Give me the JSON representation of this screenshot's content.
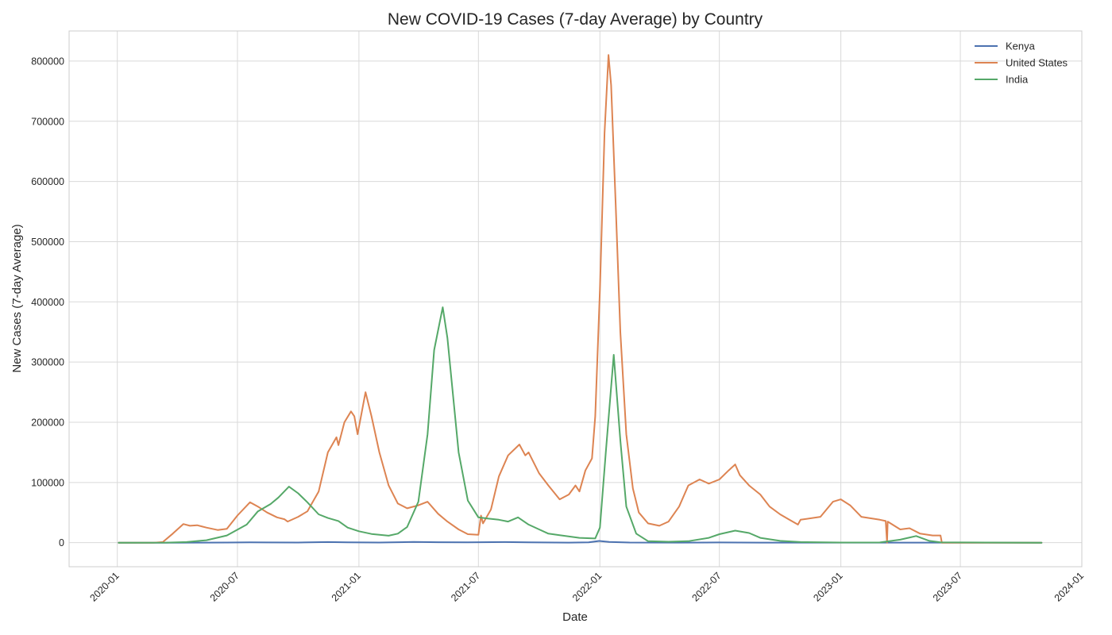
{
  "chart_data": {
    "type": "line",
    "title": "New COVID-19 Cases (7-day Average) by Country",
    "xlabel": "Date",
    "ylabel": "New Cases (7-day Average)",
    "xlim": [
      "2019-10-20",
      "2024-01-01"
    ],
    "ylim": [
      -40000,
      850000
    ],
    "x_ticks": [
      "2020-01",
      "2020-07",
      "2021-01",
      "2021-07",
      "2022-01",
      "2022-07",
      "2023-01",
      "2023-07",
      "2024-01"
    ],
    "y_ticks": [
      0,
      100000,
      200000,
      300000,
      400000,
      500000,
      600000,
      700000,
      800000
    ],
    "grid": true,
    "legend_position": "top-right",
    "series": [
      {
        "name": "Kenya",
        "color": "#4c72b0",
        "points": [
          [
            "2020-01-03",
            0
          ],
          [
            "2020-03-15",
            0
          ],
          [
            "2020-05-01",
            50
          ],
          [
            "2020-06-15",
            200
          ],
          [
            "2020-07-20",
            500
          ],
          [
            "2020-08-15",
            300
          ],
          [
            "2020-10-01",
            200
          ],
          [
            "2020-11-15",
            1000
          ],
          [
            "2020-12-15",
            500
          ],
          [
            "2021-02-01",
            150
          ],
          [
            "2021-03-25",
            1200
          ],
          [
            "2021-05-01",
            700
          ],
          [
            "2021-06-15",
            500
          ],
          [
            "2021-08-10",
            1000
          ],
          [
            "2021-09-15",
            500
          ],
          [
            "2021-11-15",
            50
          ],
          [
            "2021-12-15",
            500
          ],
          [
            "2021-12-31",
            2800
          ],
          [
            "2022-01-15",
            1200
          ],
          [
            "2022-02-15",
            200
          ],
          [
            "2022-05-01",
            100
          ],
          [
            "2022-06-30",
            300
          ],
          [
            "2022-09-01",
            100
          ],
          [
            "2023-01-01",
            30
          ],
          [
            "2023-11-01",
            0
          ]
        ]
      },
      {
        "name": "United States",
        "color": "#dd8452",
        "points": [
          [
            "2020-01-03",
            0
          ],
          [
            "2020-02-25",
            0
          ],
          [
            "2020-03-10",
            1000
          ],
          [
            "2020-03-25",
            15000
          ],
          [
            "2020-04-10",
            31000
          ],
          [
            "2020-04-20",
            28000
          ],
          [
            "2020-05-01",
            29000
          ],
          [
            "2020-05-15",
            25000
          ],
          [
            "2020-06-01",
            21000
          ],
          [
            "2020-06-15",
            23000
          ],
          [
            "2020-07-01",
            45000
          ],
          [
            "2020-07-20",
            67000
          ],
          [
            "2020-08-01",
            60000
          ],
          [
            "2020-08-15",
            50000
          ],
          [
            "2020-08-30",
            42000
          ],
          [
            "2020-09-10",
            39000
          ],
          [
            "2020-09-15",
            35000
          ],
          [
            "2020-10-01",
            43000
          ],
          [
            "2020-10-15",
            52000
          ],
          [
            "2020-11-01",
            85000
          ],
          [
            "2020-11-15",
            150000
          ],
          [
            "2020-11-28",
            175000
          ],
          [
            "2020-12-01",
            162000
          ],
          [
            "2020-12-10",
            200000
          ],
          [
            "2020-12-20",
            218000
          ],
          [
            "2020-12-25",
            210000
          ],
          [
            "2020-12-30",
            180000
          ],
          [
            "2021-01-11",
            250000
          ],
          [
            "2021-01-20",
            210000
          ],
          [
            "2021-02-01",
            150000
          ],
          [
            "2021-02-15",
            95000
          ],
          [
            "2021-03-01",
            65000
          ],
          [
            "2021-03-15",
            57000
          ],
          [
            "2021-04-01",
            62000
          ],
          [
            "2021-04-15",
            68000
          ],
          [
            "2021-05-01",
            48000
          ],
          [
            "2021-05-15",
            35000
          ],
          [
            "2021-06-01",
            22000
          ],
          [
            "2021-06-15",
            14000
          ],
          [
            "2021-07-01",
            13000
          ],
          [
            "2021-07-05",
            45000
          ],
          [
            "2021-07-08",
            32000
          ],
          [
            "2021-07-20",
            55000
          ],
          [
            "2021-08-01",
            110000
          ],
          [
            "2021-08-15",
            145000
          ],
          [
            "2021-09-01",
            163000
          ],
          [
            "2021-09-10",
            145000
          ],
          [
            "2021-09-15",
            150000
          ],
          [
            "2021-10-01",
            115000
          ],
          [
            "2021-10-15",
            95000
          ],
          [
            "2021-11-01",
            72000
          ],
          [
            "2021-11-15",
            80000
          ],
          [
            "2021-11-25",
            95000
          ],
          [
            "2021-12-01",
            85000
          ],
          [
            "2021-12-10",
            120000
          ],
          [
            "2021-12-20",
            140000
          ],
          [
            "2021-12-25",
            210000
          ],
          [
            "2022-01-01",
            420000
          ],
          [
            "2022-01-08",
            680000
          ],
          [
            "2022-01-14",
            810000
          ],
          [
            "2022-01-18",
            760000
          ],
          [
            "2022-01-25",
            560000
          ],
          [
            "2022-02-01",
            350000
          ],
          [
            "2022-02-10",
            180000
          ],
          [
            "2022-02-20",
            90000
          ],
          [
            "2022-03-01",
            50000
          ],
          [
            "2022-03-15",
            32000
          ],
          [
            "2022-04-01",
            28000
          ],
          [
            "2022-04-15",
            35000
          ],
          [
            "2022-05-01",
            60000
          ],
          [
            "2022-05-15",
            95000
          ],
          [
            "2022-06-01",
            105000
          ],
          [
            "2022-06-15",
            98000
          ],
          [
            "2022-07-01",
            105000
          ],
          [
            "2022-07-15",
            120000
          ],
          [
            "2022-07-25",
            130000
          ],
          [
            "2022-08-01",
            112000
          ],
          [
            "2022-08-15",
            95000
          ],
          [
            "2022-09-01",
            80000
          ],
          [
            "2022-09-15",
            60000
          ],
          [
            "2022-10-01",
            47000
          ],
          [
            "2022-10-15",
            38000
          ],
          [
            "2022-10-28",
            30000
          ],
          [
            "2022-11-01",
            38000
          ],
          [
            "2022-12-01",
            43000
          ],
          [
            "2022-12-20",
            68000
          ],
          [
            "2023-01-01",
            72000
          ],
          [
            "2023-01-15",
            62000
          ],
          [
            "2023-02-01",
            43000
          ],
          [
            "2023-03-01",
            38000
          ],
          [
            "2023-03-10",
            36000
          ],
          [
            "2023-03-12",
            0
          ],
          [
            "2023-03-13",
            35000
          ],
          [
            "2023-04-01",
            22000
          ],
          [
            "2023-04-15",
            24000
          ],
          [
            "2023-05-01",
            15000
          ],
          [
            "2023-05-20",
            12000
          ],
          [
            "2023-06-01",
            12000
          ],
          [
            "2023-06-03",
            0
          ],
          [
            "2023-11-01",
            0
          ]
        ]
      },
      {
        "name": "India",
        "color": "#55a868",
        "points": [
          [
            "2020-01-03",
            0
          ],
          [
            "2020-03-15",
            50
          ],
          [
            "2020-04-15",
            1000
          ],
          [
            "2020-05-15",
            4000
          ],
          [
            "2020-06-15",
            12000
          ],
          [
            "2020-07-15",
            30000
          ],
          [
            "2020-08-01",
            52000
          ],
          [
            "2020-08-20",
            64000
          ],
          [
            "2020-09-01",
            75000
          ],
          [
            "2020-09-17",
            93000
          ],
          [
            "2020-10-01",
            82000
          ],
          [
            "2020-10-15",
            67000
          ],
          [
            "2020-11-01",
            47000
          ],
          [
            "2020-11-15",
            41000
          ],
          [
            "2020-12-01",
            36000
          ],
          [
            "2020-12-15",
            25000
          ],
          [
            "2021-01-01",
            19000
          ],
          [
            "2021-01-20",
            14500
          ],
          [
            "2021-02-15",
            11500
          ],
          [
            "2021-03-01",
            15000
          ],
          [
            "2021-03-15",
            26000
          ],
          [
            "2021-04-01",
            68000
          ],
          [
            "2021-04-15",
            180000
          ],
          [
            "2021-04-25",
            320000
          ],
          [
            "2021-05-08",
            391000
          ],
          [
            "2021-05-15",
            340000
          ],
          [
            "2021-06-01",
            150000
          ],
          [
            "2021-06-15",
            70000
          ],
          [
            "2021-07-01",
            42000
          ],
          [
            "2021-07-15",
            40000
          ],
          [
            "2021-08-01",
            38000
          ],
          [
            "2021-08-15",
            35000
          ],
          [
            "2021-08-30",
            42000
          ],
          [
            "2021-09-15",
            30000
          ],
          [
            "2021-10-01",
            22000
          ],
          [
            "2021-10-15",
            15000
          ],
          [
            "2021-11-01",
            12500
          ],
          [
            "2021-12-01",
            8000
          ],
          [
            "2021-12-25",
            7000
          ],
          [
            "2022-01-01",
            25000
          ],
          [
            "2022-01-10",
            150000
          ],
          [
            "2022-01-22",
            312000
          ],
          [
            "2022-02-01",
            170000
          ],
          [
            "2022-02-10",
            60000
          ],
          [
            "2022-02-25",
            15000
          ],
          [
            "2022-03-15",
            2500
          ],
          [
            "2022-04-15",
            1500
          ],
          [
            "2022-05-15",
            2500
          ],
          [
            "2022-06-15",
            8000
          ],
          [
            "2022-07-01",
            14000
          ],
          [
            "2022-07-25",
            20000
          ],
          [
            "2022-08-15",
            16000
          ],
          [
            "2022-09-01",
            8000
          ],
          [
            "2022-10-01",
            3000
          ],
          [
            "2022-11-01",
            1000
          ],
          [
            "2023-01-01",
            200
          ],
          [
            "2023-03-01",
            300
          ],
          [
            "2023-04-01",
            5000
          ],
          [
            "2023-04-25",
            11000
          ],
          [
            "2023-05-15",
            3000
          ],
          [
            "2023-06-01",
            500
          ],
          [
            "2023-11-01",
            0
          ]
        ]
      }
    ]
  }
}
